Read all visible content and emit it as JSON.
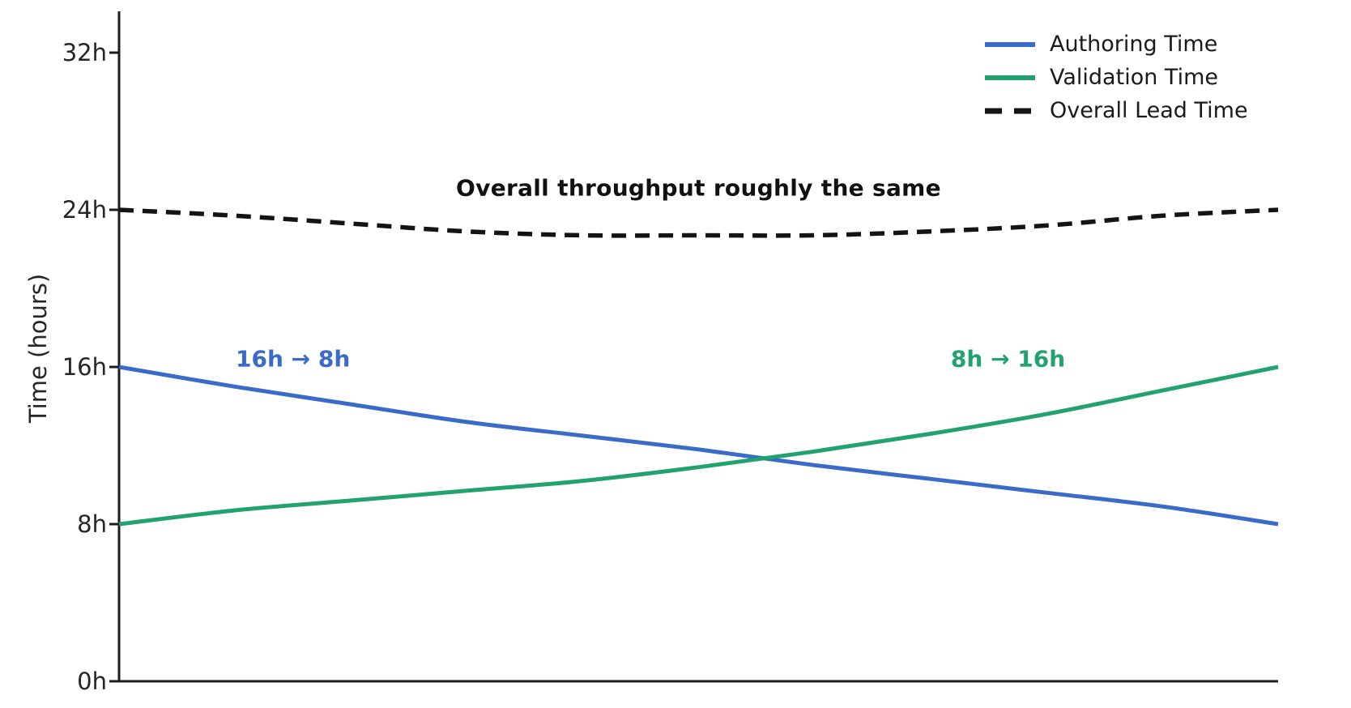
{
  "chart_data": {
    "type": "line",
    "title": "",
    "xlabel": "",
    "ylabel": "Time (hours)",
    "ylim": [
      0,
      32
    ],
    "xlim_normalized": [
      0,
      1
    ],
    "grid": false,
    "legend_position": "upper right",
    "yticks": [
      {
        "value": 0,
        "label": "0h"
      },
      {
        "value": 8,
        "label": "8h"
      },
      {
        "value": 16,
        "label": "16h"
      },
      {
        "value": 24,
        "label": "24h"
      },
      {
        "value": 32,
        "label": "32h"
      }
    ],
    "xticks": [],
    "x_normalized": [
      0,
      0.1,
      0.2,
      0.3,
      0.4,
      0.5,
      0.6,
      0.7,
      0.8,
      0.9,
      1.0
    ],
    "series": [
      {
        "name": "Authoring Time",
        "color": "#3b6bc8",
        "style": "solid",
        "start_value_hours": 16,
        "end_value_hours": 8,
        "values": [
          16.0,
          15.0,
          14.1,
          13.2,
          12.5,
          11.8,
          11.0,
          10.3,
          9.6,
          8.9,
          8.0
        ]
      },
      {
        "name": "Validation Time",
        "color": "#21a26f",
        "style": "solid",
        "start_value_hours": 8,
        "end_value_hours": 16,
        "values": [
          8.0,
          8.7,
          9.2,
          9.7,
          10.2,
          10.9,
          11.7,
          12.6,
          13.6,
          14.8,
          16.0
        ]
      },
      {
        "name": "Overall Lead Time",
        "color": "#141414",
        "style": "dashed",
        "start_value_hours": 24,
        "end_value_hours": 24,
        "values": [
          24.0,
          23.7,
          23.3,
          22.9,
          22.7,
          22.7,
          22.7,
          22.9,
          23.2,
          23.7,
          24.0
        ]
      }
    ],
    "annotations": [
      {
        "text": "Overall throughput roughly the same",
        "color": "#111111",
        "x": 0.5,
        "y": 25.1,
        "bold": true
      },
      {
        "text": "16h → 8h",
        "color": "#3b6bc8",
        "x": 0.15,
        "y": 16.4,
        "bold": true
      },
      {
        "text": "8h → 16h",
        "color": "#21a26f",
        "x": 0.767,
        "y": 16.4,
        "bold": true
      }
    ]
  }
}
